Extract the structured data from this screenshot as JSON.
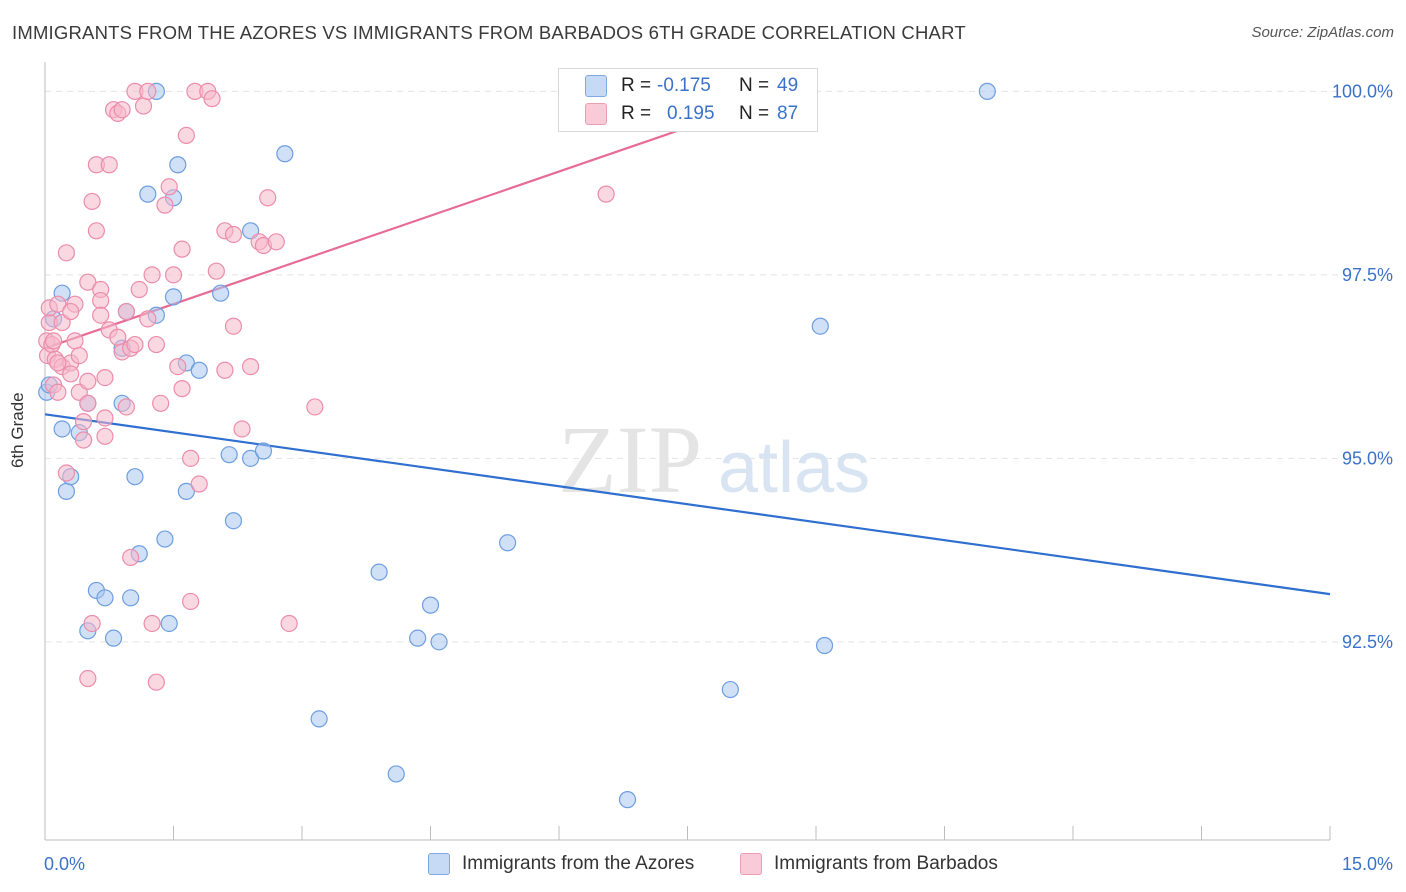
{
  "title": "IMMIGRANTS FROM THE AZORES VS IMMIGRANTS FROM BARBADOS 6TH GRADE CORRELATION CHART",
  "source": "Source: ZipAtlas.com",
  "watermark": {
    "zip": "ZIP",
    "atlas": "atlas"
  },
  "legend": {
    "r_label": "R =",
    "n_label": "N =",
    "rows": [
      {
        "r": "-0.175",
        "n": "49"
      },
      {
        "r": "0.195",
        "n": "87"
      }
    ]
  },
  "colors": {
    "blue_fill": "#a9c6ee",
    "blue_stroke": "#6d9ee0",
    "blue_line": "#2f6fd0",
    "pink_fill": "#f6b8cb",
    "pink_stroke": "#ec8cab",
    "pink_line": "#e76c95",
    "tick_label": "#3a72c8",
    "grid": "#e3e3e3"
  },
  "chart_data": {
    "type": "scatter",
    "title": "IMMIGRANTS FROM THE AZORES VS IMMIGRANTS FROM BARBADOS 6TH GRADE CORRELATION CHART",
    "xlabel": "",
    "ylabel": "6th Grade",
    "xlim": [
      0,
      15
    ],
    "ylim": [
      89.8,
      100.4
    ],
    "x_tick_labels": [
      "0.0%",
      "15.0%"
    ],
    "y_ticks": [
      92.5,
      95.0,
      97.5,
      100.0
    ],
    "y_tick_labels": [
      "92.5%",
      "95.0%",
      "97.5%",
      "100.0%"
    ],
    "grid": true,
    "legend_placement": "top-center",
    "series": [
      {
        "name": "Immigrants from the Azores",
        "color": "#a9c6ee",
        "trend": {
          "x": [
            0.0,
            15.0
          ],
          "y": [
            95.6,
            93.15
          ]
        },
        "points": [
          [
            0.02,
            95.9
          ],
          [
            0.05,
            96.0
          ],
          [
            0.1,
            96.9
          ],
          [
            0.2,
            97.25
          ],
          [
            0.2,
            95.4
          ],
          [
            0.25,
            94.55
          ],
          [
            0.3,
            94.75
          ],
          [
            0.4,
            95.35
          ],
          [
            0.5,
            92.65
          ],
          [
            0.5,
            95.75
          ],
          [
            0.6,
            93.2
          ],
          [
            0.7,
            93.1
          ],
          [
            0.8,
            92.55
          ],
          [
            0.9,
            95.75
          ],
          [
            0.9,
            96.5
          ],
          [
            0.95,
            97.0
          ],
          [
            1.0,
            93.1
          ],
          [
            1.05,
            94.75
          ],
          [
            1.1,
            93.7
          ],
          [
            1.2,
            98.6
          ],
          [
            1.3,
            100.0
          ],
          [
            1.3,
            96.95
          ],
          [
            1.4,
            93.9
          ],
          [
            1.45,
            92.75
          ],
          [
            1.5,
            98.55
          ],
          [
            1.5,
            97.2
          ],
          [
            1.55,
            99.0
          ],
          [
            1.65,
            94.55
          ],
          [
            1.65,
            96.3
          ],
          [
            1.8,
            96.2
          ],
          [
            2.05,
            97.25
          ],
          [
            2.15,
            95.05
          ],
          [
            2.2,
            94.15
          ],
          [
            2.4,
            95.0
          ],
          [
            2.4,
            98.1
          ],
          [
            2.55,
            95.1
          ],
          [
            2.8,
            99.15
          ],
          [
            3.2,
            91.45
          ],
          [
            3.9,
            93.45
          ],
          [
            4.1,
            90.7
          ],
          [
            4.5,
            93.0
          ],
          [
            4.35,
            92.55
          ],
          [
            4.6,
            92.5
          ],
          [
            5.4,
            93.85
          ],
          [
            6.8,
            90.35
          ],
          [
            8.0,
            91.85
          ],
          [
            9.05,
            96.8
          ],
          [
            9.1,
            92.45
          ],
          [
            11.0,
            100.0
          ]
        ]
      },
      {
        "name": "Immigrants from Barbados",
        "color": "#f6b8cb",
        "trend": {
          "x": [
            0.0,
            8.1
          ],
          "y": [
            96.5,
            99.75
          ]
        },
        "points": [
          [
            0.02,
            96.6
          ],
          [
            0.03,
            96.4
          ],
          [
            0.05,
            96.85
          ],
          [
            0.05,
            97.05
          ],
          [
            0.08,
            96.55
          ],
          [
            0.1,
            96.0
          ],
          [
            0.12,
            96.35
          ],
          [
            0.15,
            97.1
          ],
          [
            0.15,
            95.9
          ],
          [
            0.2,
            96.85
          ],
          [
            0.2,
            96.25
          ],
          [
            0.25,
            97.8
          ],
          [
            0.25,
            94.8
          ],
          [
            0.3,
            96.3
          ],
          [
            0.3,
            96.15
          ],
          [
            0.35,
            97.1
          ],
          [
            0.35,
            96.6
          ],
          [
            0.4,
            95.9
          ],
          [
            0.4,
            96.4
          ],
          [
            0.45,
            95.5
          ],
          [
            0.45,
            95.25
          ],
          [
            0.5,
            97.4
          ],
          [
            0.5,
            96.05
          ],
          [
            0.5,
            95.75
          ],
          [
            0.5,
            92.0
          ],
          [
            0.55,
            98.5
          ],
          [
            0.55,
            92.75
          ],
          [
            0.6,
            99.0
          ],
          [
            0.6,
            98.1
          ],
          [
            0.65,
            97.3
          ],
          [
            0.65,
            97.15
          ],
          [
            0.65,
            96.95
          ],
          [
            0.7,
            96.1
          ],
          [
            0.7,
            95.55
          ],
          [
            0.7,
            95.3
          ],
          [
            0.75,
            99.0
          ],
          [
            0.75,
            96.75
          ],
          [
            0.8,
            99.75
          ],
          [
            0.85,
            99.7
          ],
          [
            0.85,
            96.65
          ],
          [
            0.9,
            99.75
          ],
          [
            0.9,
            96.45
          ],
          [
            0.95,
            97.0
          ],
          [
            1.0,
            96.5
          ],
          [
            1.0,
            93.65
          ],
          [
            1.05,
            100.0
          ],
          [
            1.05,
            96.55
          ],
          [
            1.1,
            97.3
          ],
          [
            1.15,
            99.8
          ],
          [
            1.2,
            100.0
          ],
          [
            1.2,
            96.9
          ],
          [
            1.25,
            97.5
          ],
          [
            1.3,
            96.55
          ],
          [
            1.35,
            95.75
          ],
          [
            1.4,
            98.45
          ],
          [
            1.45,
            98.7
          ],
          [
            1.5,
            97.5
          ],
          [
            1.55,
            96.25
          ],
          [
            1.6,
            97.85
          ],
          [
            1.6,
            95.95
          ],
          [
            1.65,
            99.4
          ],
          [
            1.7,
            95.0
          ],
          [
            1.7,
            93.05
          ],
          [
            1.75,
            100.0
          ],
          [
            1.8,
            94.65
          ],
          [
            1.9,
            100.0
          ],
          [
            1.95,
            99.9
          ],
          [
            2.0,
            97.55
          ],
          [
            2.1,
            98.1
          ],
          [
            2.1,
            96.2
          ],
          [
            2.2,
            98.05
          ],
          [
            2.2,
            96.8
          ],
          [
            2.3,
            95.4
          ],
          [
            2.4,
            96.25
          ],
          [
            2.5,
            97.95
          ],
          [
            2.55,
            97.9
          ],
          [
            2.6,
            98.55
          ],
          [
            2.7,
            97.95
          ],
          [
            2.85,
            92.75
          ],
          [
            3.15,
            95.7
          ],
          [
            1.25,
            92.75
          ],
          [
            1.3,
            91.95
          ],
          [
            0.95,
            95.7
          ],
          [
            6.55,
            98.6
          ],
          [
            0.3,
            97.0
          ],
          [
            0.1,
            96.6
          ],
          [
            0.15,
            96.3
          ]
        ]
      }
    ]
  },
  "bottom_legend": [
    {
      "label": "Immigrants from the Azores"
    },
    {
      "label": "Immigrants from Barbados"
    }
  ]
}
